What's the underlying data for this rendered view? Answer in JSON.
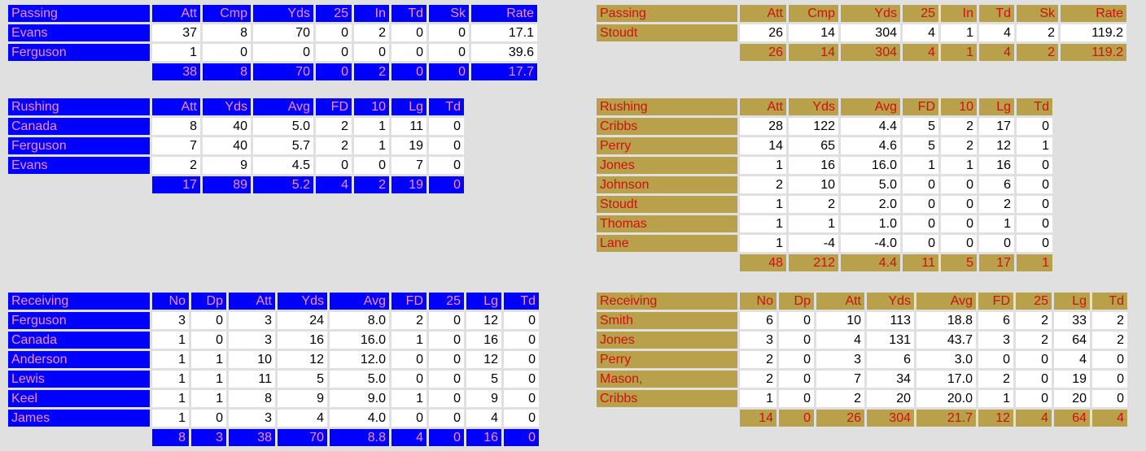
{
  "colors": {
    "blue_bg": "#0000ff",
    "blue_text": "#f58ccf",
    "gold_bg": "#b9a04a",
    "gold_text": "#d01010",
    "page_bg": "#e0e0e0"
  },
  "tables": [
    {
      "id": "left-passing",
      "theme": "blue",
      "headers": [
        "Passing",
        "Att",
        "Cmp",
        "Yds",
        "25",
        "In",
        "Td",
        "Sk",
        "Rate"
      ],
      "rows": [
        [
          "Evans",
          "37",
          "8",
          "70",
          "0",
          "2",
          "0",
          "0",
          "17.1"
        ],
        [
          "Ferguson",
          "1",
          "0",
          "0",
          "0",
          "0",
          "0",
          "0",
          "39.6"
        ]
      ],
      "totals": [
        "",
        "38",
        "8",
        "70",
        "0",
        "2",
        "0",
        "0",
        "17.7"
      ]
    },
    {
      "id": "right-passing",
      "theme": "gold",
      "headers": [
        "Passing",
        "Att",
        "Cmp",
        "Yds",
        "25",
        "In",
        "Td",
        "Sk",
        "Rate"
      ],
      "rows": [
        [
          "Stoudt",
          "26",
          "14",
          "304",
          "4",
          "1",
          "4",
          "2",
          "119.2"
        ]
      ],
      "totals": [
        "",
        "26",
        "14",
        "304",
        "4",
        "1",
        "4",
        "2",
        "119.2"
      ]
    },
    {
      "id": "left-rushing",
      "theme": "blue",
      "headers": [
        "Rushing",
        "Att",
        "Yds",
        "Avg",
        "FD",
        "10",
        "Lg",
        "Td"
      ],
      "rows": [
        [
          "Canada",
          "8",
          "40",
          "5.0",
          "2",
          "1",
          "11",
          "0"
        ],
        [
          "Ferguson",
          "7",
          "40",
          "5.7",
          "2",
          "1",
          "19",
          "0"
        ],
        [
          "Evans",
          "2",
          "9",
          "4.5",
          "0",
          "0",
          "7",
          "0"
        ]
      ],
      "totals": [
        "",
        "17",
        "89",
        "5.2",
        "4",
        "2",
        "19",
        "0"
      ]
    },
    {
      "id": "right-rushing",
      "theme": "gold",
      "headers": [
        "Rushing",
        "Att",
        "Yds",
        "Avg",
        "FD",
        "10",
        "Lg",
        "Td"
      ],
      "rows": [
        [
          "Cribbs",
          "28",
          "122",
          "4.4",
          "5",
          "2",
          "17",
          "0"
        ],
        [
          "Perry",
          "14",
          "65",
          "4.6",
          "5",
          "2",
          "12",
          "1"
        ],
        [
          "Jones",
          "1",
          "16",
          "16.0",
          "1",
          "1",
          "16",
          "0"
        ],
        [
          "Johnson",
          "2",
          "10",
          "5.0",
          "0",
          "0",
          "6",
          "0"
        ],
        [
          "Stoudt",
          "1",
          "2",
          "2.0",
          "0",
          "0",
          "2",
          "0"
        ],
        [
          "Thomas",
          "1",
          "1",
          "1.0",
          "0",
          "0",
          "1",
          "0"
        ],
        [
          "Lane",
          "1",
          "-4",
          "-4.0",
          "0",
          "0",
          "0",
          "0"
        ]
      ],
      "totals": [
        "",
        "48",
        "212",
        "4.4",
        "11",
        "5",
        "17",
        "1"
      ]
    },
    {
      "id": "left-receiving",
      "theme": "blue",
      "headers": [
        "Receiving",
        "No",
        "Dp",
        "Att",
        "Yds",
        "Avg",
        "FD",
        "25",
        "Lg",
        "Td"
      ],
      "rows": [
        [
          "Ferguson",
          "3",
          "0",
          "3",
          "24",
          "8.0",
          "2",
          "0",
          "12",
          "0"
        ],
        [
          "Canada",
          "1",
          "0",
          "3",
          "16",
          "16.0",
          "1",
          "0",
          "16",
          "0"
        ],
        [
          "Anderson",
          "1",
          "1",
          "10",
          "12",
          "12.0",
          "0",
          "0",
          "12",
          "0"
        ],
        [
          "Lewis",
          "1",
          "1",
          "11",
          "5",
          "5.0",
          "0",
          "0",
          "5",
          "0"
        ],
        [
          "Keel",
          "1",
          "1",
          "8",
          "9",
          "9.0",
          "1",
          "0",
          "9",
          "0"
        ],
        [
          "James",
          "1",
          "0",
          "3",
          "4",
          "4.0",
          "0",
          "0",
          "4",
          "0"
        ]
      ],
      "totals": [
        "",
        "8",
        "3",
        "38",
        "70",
        "8.8",
        "4",
        "0",
        "16",
        "0"
      ]
    },
    {
      "id": "right-receiving",
      "theme": "gold",
      "headers": [
        "Receiving",
        "No",
        "Dp",
        "Att",
        "Yds",
        "Avg",
        "FD",
        "25",
        "Lg",
        "Td"
      ],
      "rows": [
        [
          "Smith",
          "6",
          "0",
          "10",
          "113",
          "18.8",
          "6",
          "2",
          "33",
          "2"
        ],
        [
          "Jones",
          "3",
          "0",
          "4",
          "131",
          "43.7",
          "3",
          "2",
          "64",
          "2"
        ],
        [
          "Perry",
          "2",
          "0",
          "3",
          "6",
          "3.0",
          "0",
          "0",
          "4",
          "0"
        ],
        [
          "Mason,",
          "2",
          "0",
          "7",
          "34",
          "17.0",
          "2",
          "0",
          "19",
          "0"
        ],
        [
          "Cribbs",
          "1",
          "0",
          "2",
          "20",
          "20.0",
          "1",
          "0",
          "20",
          "0"
        ]
      ],
      "totals": [
        "",
        "14",
        "0",
        "26",
        "304",
        "21.7",
        "12",
        "4",
        "64",
        "4"
      ]
    }
  ]
}
